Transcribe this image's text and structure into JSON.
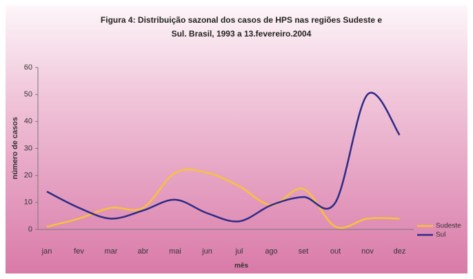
{
  "chart_data": {
    "type": "line",
    "title_lines": [
      "Figura 4: Distribuição sazonal dos casos de HPS nas regiões Sudeste e",
      "Sul. Brasil, 1993 a 13.fevereiro.2004"
    ],
    "x_label": "mês",
    "y_label": "número de casos",
    "categories": [
      "jan",
      "fev",
      "mar",
      "abr",
      "mai",
      "jun",
      "jul",
      "ago",
      "set",
      "out",
      "nov",
      "dez"
    ],
    "series": [
      {
        "name": "Sudeste",
        "color": "#f7c23a",
        "values": [
          1,
          4,
          8,
          8,
          21,
          21,
          16,
          9,
          15,
          1,
          4,
          4
        ]
      },
      {
        "name": "Sul",
        "color": "#2b2a86",
        "values": [
          14,
          8,
          4,
          7,
          11,
          6,
          3,
          9,
          12,
          10,
          50,
          35
        ]
      }
    ],
    "ylim": [
      0,
      60
    ],
    "yticks": [
      0,
      10,
      20,
      30,
      40,
      50,
      60
    ],
    "legend": "right"
  }
}
